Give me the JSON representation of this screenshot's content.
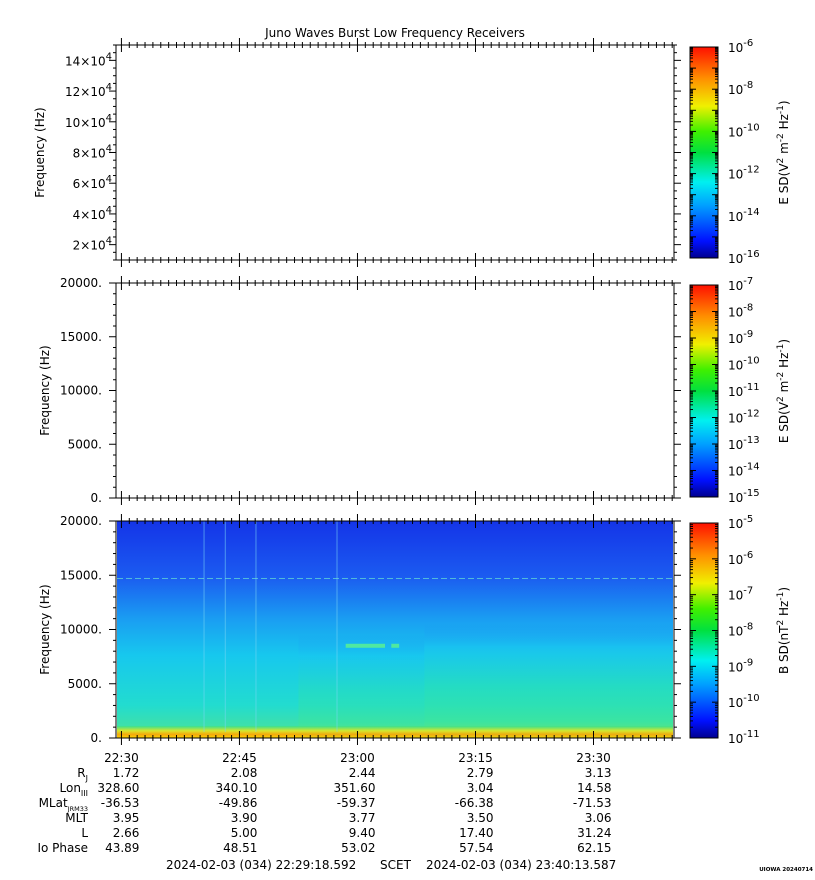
{
  "title": "Juno Waves Burst Low Frequency Receivers",
  "colors": {
    "background": "#ffffff",
    "spectrogram_low": "#ffd200",
    "spectrogram_mid": "#00e6c8",
    "spectrogram_high": "#0a2bd8"
  },
  "chart_data": [
    {
      "type": "heatmap",
      "panel": "top",
      "ylabel": "Frequency (Hz)",
      "ytick_labels": [
        {
          "mantissa": "2",
          "exp": "4",
          "value": 20000
        },
        {
          "mantissa": "4",
          "exp": "4",
          "value": 40000
        },
        {
          "mantissa": "6",
          "exp": "4",
          "value": 60000
        },
        {
          "mantissa": "8",
          "exp": "4",
          "value": 80000
        },
        {
          "mantissa": "10",
          "exp": "4",
          "value": 100000
        },
        {
          "mantissa": "12",
          "exp": "4",
          "value": 120000
        },
        {
          "mantissa": "14",
          "exp": "4",
          "value": 140000
        }
      ],
      "ylim": [
        10000,
        150000
      ],
      "xlim": [
        "22:29:18.592",
        "23:40:13.587"
      ],
      "colorbar": {
        "label_main": "E SD(V",
        "label_sup1": "2",
        "label_mid": " m",
        "label_sup2": "-2",
        "label_mid2": " Hz",
        "label_sup3": "-1",
        "label_end": ")",
        "scale": "log",
        "ticks": [
          {
            "mantissa": "10",
            "exp": "-16"
          },
          {
            "mantissa": "10",
            "exp": "-14"
          },
          {
            "mantissa": "10",
            "exp": "-12"
          },
          {
            "mantissa": "10",
            "exp": "-10"
          },
          {
            "mantissa": "10",
            "exp": "-8"
          },
          {
            "mantissa": "10",
            "exp": "-6"
          }
        ]
      },
      "has_data": false
    },
    {
      "type": "heatmap",
      "panel": "middle",
      "ylabel": "Frequency (Hz)",
      "ytick_labels": [
        "0.",
        "5000.",
        "10000.",
        "15000.",
        "20000."
      ],
      "ytick_values": [
        0,
        5000,
        10000,
        15000,
        20000
      ],
      "ylim": [
        0,
        20000
      ],
      "colorbar": {
        "label_main": "E SD(V",
        "label_sup1": "2",
        "label_mid": " m",
        "label_sup2": "-2",
        "label_mid2": " Hz",
        "label_sup3": "-1",
        "label_end": ")",
        "scale": "log",
        "ticks": [
          {
            "mantissa": "10",
            "exp": "-15"
          },
          {
            "mantissa": "10",
            "exp": "-14"
          },
          {
            "mantissa": "10",
            "exp": "-13"
          },
          {
            "mantissa": "10",
            "exp": "-12"
          },
          {
            "mantissa": "10",
            "exp": "-11"
          },
          {
            "mantissa": "10",
            "exp": "-10"
          },
          {
            "mantissa": "10",
            "exp": "-9"
          },
          {
            "mantissa": "10",
            "exp": "-8"
          },
          {
            "mantissa": "10",
            "exp": "-7"
          }
        ]
      },
      "has_data": false
    },
    {
      "type": "heatmap",
      "panel": "bottom",
      "ylabel": "Frequency (Hz)",
      "ytick_labels": [
        "0.",
        "5000.",
        "10000.",
        "15000.",
        "20000."
      ],
      "ytick_values": [
        0,
        5000,
        10000,
        15000,
        20000
      ],
      "ylim": [
        0,
        20000
      ],
      "colorbar": {
        "label_main": "B SD(nT",
        "label_sup1": "2",
        "label_mid": " Hz",
        "label_sup2": "-1",
        "label_end": ")",
        "scale": "log",
        "ticks": [
          {
            "mantissa": "10",
            "exp": "-11"
          },
          {
            "mantissa": "10",
            "exp": "-10"
          },
          {
            "mantissa": "10",
            "exp": "-9"
          },
          {
            "mantissa": "10",
            "exp": "-8"
          },
          {
            "mantissa": "10",
            "exp": "-7"
          },
          {
            "mantissa": "10",
            "exp": "-6"
          },
          {
            "mantissa": "10",
            "exp": "-5"
          }
        ]
      },
      "has_data": true,
      "features": {
        "background_level": "blue (~1e-10)",
        "low_band_hz": [
          0,
          1000
        ],
        "enhancement_start": "22:52",
        "enhancement_end": "23:08 resumes",
        "narrowband_line_hz": 14700,
        "tone_at_hz": 8500,
        "tone_time": [
          "22:58",
          "23:06"
        ]
      }
    }
  ],
  "x_axis": {
    "tick_labels": [
      "22:30",
      "22:45",
      "23:00",
      "23:15",
      "23:30"
    ],
    "tick_minutes": [
      30,
      45,
      60,
      75,
      90
    ],
    "start_minutes": 29.31,
    "end_minutes": 100.23
  },
  "ephemeris": {
    "rows": [
      {
        "label": "R",
        "sub": "J",
        "sup": "",
        "values": [
          "1.72",
          "2.08",
          "2.44",
          "2.79",
          "3.13"
        ]
      },
      {
        "label": "Lon",
        "sub": "III",
        "sup": "",
        "values": [
          "328.60",
          "340.10",
          "351.60",
          "3.04",
          "14.58"
        ]
      },
      {
        "label": "MLat",
        "sub": "JRM33",
        "sup": "",
        "values": [
          "-36.53",
          "-49.86",
          "-59.37",
          "-66.38",
          "-71.53"
        ]
      },
      {
        "label": "MLT",
        "sub": "",
        "sup": "",
        "values": [
          "3.95",
          "3.90",
          "3.77",
          "3.50",
          "3.06"
        ]
      },
      {
        "label": "L",
        "sub": "",
        "sup": "",
        "values": [
          "2.66",
          "5.00",
          "9.40",
          "17.40",
          "31.24"
        ]
      },
      {
        "label": "Io Phase",
        "sub": "",
        "sup": "",
        "values": [
          "43.89",
          "48.51",
          "53.02",
          "57.54",
          "62.15"
        ]
      }
    ]
  },
  "footer": {
    "start": "2024-02-03 (034) 22:29:18.592",
    "mid": "SCET",
    "end": "2024-02-03 (034) 23:40:13.587",
    "version": "UIOWA 20240714"
  }
}
